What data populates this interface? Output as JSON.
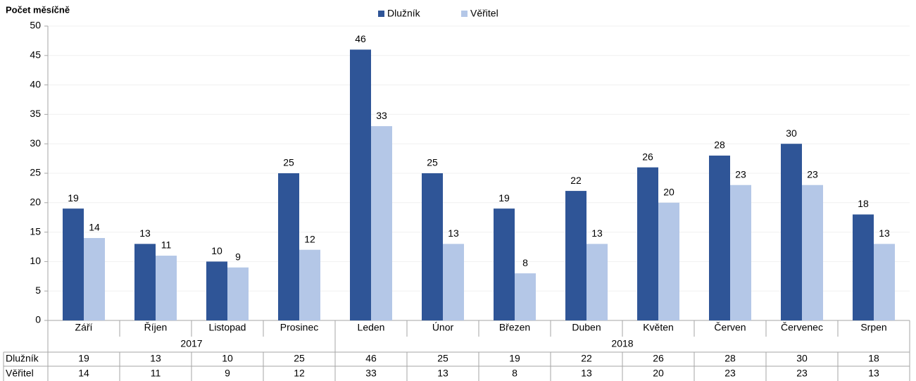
{
  "chart_data": {
    "type": "bar",
    "y_label": "Počet měsíčně",
    "categories": [
      "Září",
      "Říjen",
      "Listopad",
      "Prosinec",
      "Leden",
      "Únor",
      "Březen",
      "Duben",
      "Květen",
      "Červen",
      "Červenec",
      "Srpen"
    ],
    "groups": [
      {
        "label": "2017",
        "span": 4
      },
      {
        "label": "2018",
        "span": 8
      }
    ],
    "series": [
      {
        "name": "Dlužník",
        "color": "#2f5597",
        "values": [
          19,
          13,
          10,
          25,
          46,
          25,
          19,
          22,
          26,
          28,
          30,
          18
        ]
      },
      {
        "name": "Věřitel",
        "color": "#b4c7e7",
        "values": [
          14,
          11,
          9,
          12,
          33,
          13,
          8,
          13,
          20,
          23,
          23,
          13
        ]
      }
    ],
    "ylim": [
      0,
      50
    ],
    "yticks": [
      0,
      5,
      10,
      15,
      20,
      25,
      30,
      35,
      40,
      45,
      50
    ],
    "grid": true,
    "legend": "top"
  }
}
